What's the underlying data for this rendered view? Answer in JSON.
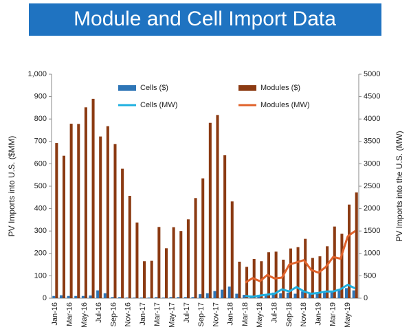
{
  "chart_data": {
    "type": "bar",
    "title": "Module and Cell Import Data",
    "ylabel": "PV Imports into U.S. ($MM)",
    "y2label": "PV Imports into the U.S. (MW)",
    "categories": [
      "Jan-16",
      null,
      "Mar-16",
      null,
      "May-16",
      null,
      "Jul-16",
      null,
      "Sep-16",
      null,
      "Nov-16",
      null,
      "Jan-17",
      null,
      "Mar-17",
      null,
      "May-17",
      null,
      "Jul-17",
      null,
      "Sep-17",
      null,
      "Nov-17",
      null,
      "Jan-18",
      null,
      "Mar-18",
      null,
      "May-18",
      null,
      "Jul-18",
      null,
      "Sep-18",
      null,
      "Nov-18",
      null,
      "Jan-19",
      null,
      "Mar-19",
      null,
      "May-19",
      null
    ],
    "series": [
      {
        "name": "Cells ($)",
        "type": "bar",
        "color": "#2e75b6",
        "values": [
          10,
          13,
          10,
          10,
          10,
          12,
          35,
          22,
          5,
          5,
          3,
          3,
          3,
          3,
          5,
          3,
          5,
          5,
          5,
          5,
          18,
          22,
          32,
          38,
          52,
          20,
          15,
          12,
          15,
          15,
          25,
          22,
          25,
          20,
          30,
          25,
          25,
          25,
          30,
          35,
          45,
          35
        ]
      },
      {
        "name": "Modules ($)",
        "type": "bar",
        "color": "#8b3a12",
        "values": [
          693,
          636,
          779,
          778,
          852,
          890,
          722,
          768,
          688,
          578,
          457,
          338,
          165,
          167,
          318,
          223,
          317,
          300,
          352,
          447,
          535,
          783,
          818,
          638,
          432,
          163,
          140,
          175,
          165,
          205,
          208,
          172,
          222,
          228,
          265,
          180,
          187,
          232,
          320,
          288,
          418,
          472
        ]
      },
      {
        "name": "Cells (MW)",
        "type": "line",
        "axis": "y2",
        "color": "#1fb0e0",
        "values": [
          null,
          null,
          null,
          null,
          null,
          null,
          null,
          null,
          null,
          null,
          null,
          null,
          null,
          null,
          null,
          null,
          null,
          null,
          null,
          null,
          null,
          null,
          null,
          null,
          null,
          null,
          50,
          30,
          60,
          80,
          100,
          200,
          150,
          250,
          150,
          100,
          120,
          150,
          150,
          200,
          300,
          220
        ]
      },
      {
        "name": "Modules (MW)",
        "type": "line",
        "axis": "y2",
        "color": "#e0622b",
        "values": [
          null,
          null,
          null,
          null,
          null,
          null,
          null,
          null,
          null,
          null,
          null,
          null,
          null,
          null,
          null,
          null,
          null,
          null,
          null,
          null,
          null,
          null,
          null,
          null,
          null,
          null,
          350,
          450,
          380,
          520,
          440,
          460,
          750,
          800,
          850,
          630,
          570,
          700,
          920,
          880,
          1380,
          1500
        ]
      }
    ],
    "ylim": [
      0,
      1000
    ],
    "yticks": [
      0,
      100,
      200,
      300,
      400,
      500,
      600,
      700,
      800,
      900,
      {
        "value": 1000,
        "label": "1,000"
      }
    ],
    "y2lim": [
      0,
      5000
    ],
    "y2ticks": [
      0,
      500,
      1000,
      1500,
      2000,
      2500,
      3000,
      3500,
      4000,
      4500,
      5000
    ]
  }
}
